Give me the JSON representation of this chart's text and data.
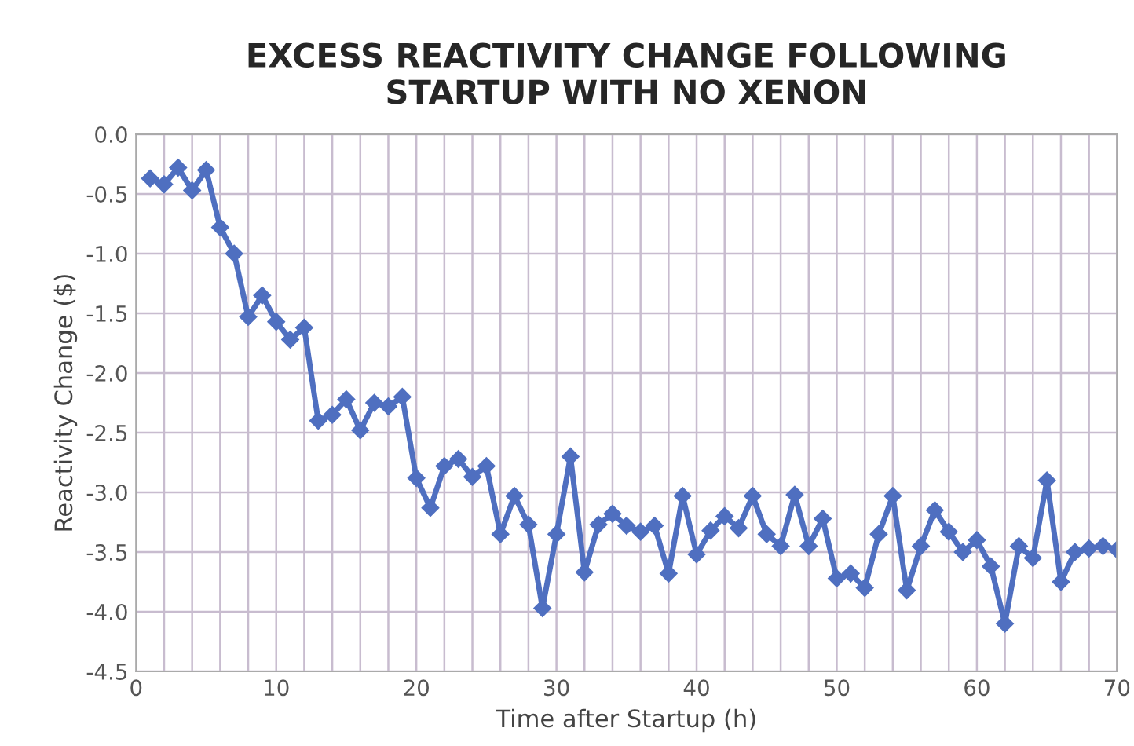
{
  "chart_data": {
    "type": "line",
    "title": "EXCESS REACTIVITY CHANGE FOLLOWING\nSTARTUP WITH NO XENON",
    "xlabel": "Time after Startup (h)",
    "ylabel": "Reactivity Change ($)",
    "x": [
      1,
      2,
      3,
      4,
      5,
      6,
      7,
      8,
      9,
      10,
      11,
      12,
      13,
      14,
      15,
      16,
      17,
      18,
      19,
      20,
      21,
      22,
      23,
      24,
      25,
      26,
      27,
      28,
      29,
      30,
      31,
      32,
      33,
      34,
      35,
      36,
      37,
      38,
      39,
      40,
      41,
      42,
      43,
      44,
      45,
      46,
      47,
      48,
      49,
      50,
      51,
      52,
      53,
      54,
      55,
      56,
      57,
      58,
      59,
      60,
      61,
      62,
      63,
      64,
      65,
      66,
      67,
      68,
      69,
      70
    ],
    "series": [
      {
        "color": "#4f6fc0",
        "values": [
          -0.37,
          -0.42,
          -0.28,
          -0.47,
          -0.3,
          -0.78,
          -1.0,
          -1.53,
          -1.35,
          -1.57,
          -1.72,
          -1.62,
          -2.4,
          -2.35,
          -2.22,
          -2.48,
          -2.25,
          -2.28,
          -2.2,
          -2.88,
          -3.13,
          -2.78,
          -2.72,
          -2.87,
          -2.78,
          -3.35,
          -3.03,
          -3.27,
          -3.97,
          -3.35,
          -2.7,
          -3.67,
          -3.27,
          -3.18,
          -3.28,
          -3.33,
          -3.28,
          -3.68,
          -3.03,
          -3.52,
          -3.32,
          -3.2,
          -3.3,
          -3.03,
          -3.35,
          -3.45,
          -3.02,
          -3.45,
          -3.22,
          -3.72,
          -3.68,
          -3.8,
          -3.35,
          -3.03,
          -3.82,
          -3.45,
          -3.15,
          -3.33,
          -3.5,
          -3.4,
          -3.62,
          -4.1,
          -3.45,
          -3.55,
          -2.9,
          -3.75,
          -3.5,
          -3.47,
          -3.45,
          -3.48
        ]
      }
    ],
    "xlim": [
      0,
      70
    ],
    "ylim": [
      -4.5,
      0
    ],
    "xticks": [
      0,
      {
        "value": 2,
        "label": null
      },
      {
        "value": 4,
        "label": null
      },
      {
        "value": 6,
        "label": null
      },
      {
        "value": 8,
        "label": null
      },
      10,
      {
        "value": 12,
        "label": null
      },
      {
        "value": 14,
        "label": null
      },
      {
        "value": 16,
        "label": null
      },
      {
        "value": 18,
        "label": null
      },
      20,
      {
        "value": 22,
        "label": null
      },
      {
        "value": 24,
        "label": null
      },
      {
        "value": 26,
        "label": null
      },
      {
        "value": 28,
        "label": null
      },
      30,
      {
        "value": 32,
        "label": null
      },
      {
        "value": 34,
        "label": null
      },
      {
        "value": 36,
        "label": null
      },
      {
        "value": 38,
        "label": null
      },
      40,
      {
        "value": 42,
        "label": null
      },
      {
        "value": 44,
        "label": null
      },
      {
        "value": 46,
        "label": null
      },
      {
        "value": 48,
        "label": null
      },
      50,
      {
        "value": 52,
        "label": null
      },
      {
        "value": 54,
        "label": null
      },
      {
        "value": 56,
        "label": null
      },
      {
        "value": 58,
        "label": null
      },
      60,
      {
        "value": 62,
        "label": null
      },
      {
        "value": 64,
        "label": null
      },
      {
        "value": 66,
        "label": null
      },
      {
        "value": 68,
        "label": null
      },
      70
    ],
    "yticks": [
      {
        "value": 0,
        "label": "0.0"
      },
      {
        "value": -0.5,
        "label": "-0.5"
      },
      {
        "value": -1,
        "label": "-1.0"
      },
      {
        "value": -1.5,
        "label": "-1.5"
      },
      {
        "value": -2,
        "label": "-2.0"
      },
      {
        "value": -2.5,
        "label": "-2.5"
      },
      {
        "value": -3,
        "label": "-3.0"
      },
      {
        "value": -3.5,
        "label": "-3.5"
      },
      {
        "value": -4,
        "label": "-4.0"
      },
      {
        "value": -4.5,
        "label": "-4.5"
      }
    ],
    "grid": true,
    "marker": "diamond",
    "line_style": "solid",
    "legend": false
  }
}
